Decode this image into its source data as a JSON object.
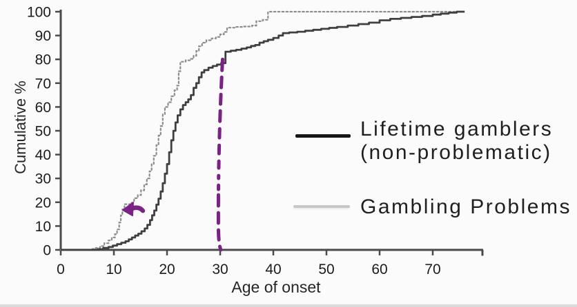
{
  "page": {
    "background": "#fbfbfb",
    "bottom_strip_color": "#dcdcdc"
  },
  "axis": {
    "color": "#4a4a4a",
    "tick_label_color": "#1c1c1c"
  },
  "chart_data": {
    "type": "line",
    "subtype": "cumulative-step",
    "title": "",
    "xlabel": "Age of onset",
    "ylabel": "Cumulative %",
    "xlim": [
      0,
      80
    ],
    "ylim": [
      0,
      100
    ],
    "x_ticks": [
      0,
      10,
      20,
      30,
      40,
      50,
      60,
      70
    ],
    "y_ticks": [
      0,
      10,
      20,
      30,
      40,
      50,
      60,
      70,
      80,
      90,
      100
    ],
    "grid": false,
    "legend_position": "right-middle",
    "series": [
      {
        "name": "Lifetime gamblers (non-problematic)",
        "line_style": "solid",
        "color": "#3f3f3f",
        "points": [
          [
            0,
            0
          ],
          [
            5.5,
            0
          ],
          [
            7,
            0.3
          ],
          [
            8,
            0.8
          ],
          [
            9,
            1.2
          ],
          [
            9.8,
            1.8
          ],
          [
            10.6,
            2.4
          ],
          [
            11.4,
            3
          ],
          [
            12.2,
            3.6
          ],
          [
            12.8,
            4.4
          ],
          [
            13.4,
            5.2
          ],
          [
            14,
            6
          ],
          [
            14.6,
            6.8
          ],
          [
            15.2,
            7.8
          ],
          [
            15.8,
            9
          ],
          [
            16.3,
            10.5
          ],
          [
            16.8,
            12.5
          ],
          [
            17.2,
            14.5
          ],
          [
            17.6,
            16.5
          ],
          [
            18,
            19
          ],
          [
            18.4,
            21.5
          ],
          [
            18.8,
            24.5
          ],
          [
            19.2,
            28
          ],
          [
            19.6,
            32
          ],
          [
            20,
            36
          ],
          [
            20.4,
            41
          ],
          [
            20.8,
            46
          ],
          [
            21.2,
            50
          ],
          [
            21.6,
            53.5
          ],
          [
            22,
            56.5
          ],
          [
            22.5,
            59
          ],
          [
            23,
            60.8
          ],
          [
            23.5,
            62
          ],
          [
            24,
            63.2
          ],
          [
            24.5,
            65
          ],
          [
            25,
            68
          ],
          [
            25.5,
            70
          ],
          [
            26,
            72.5
          ],
          [
            26.5,
            74.5
          ],
          [
            27,
            75.5
          ],
          [
            27.8,
            76.5
          ],
          [
            28.6,
            77.2
          ],
          [
            29.4,
            77.8
          ],
          [
            30.2,
            78.4
          ],
          [
            31,
            83.2
          ],
          [
            32,
            83.6
          ],
          [
            33,
            84
          ],
          [
            34,
            84.5
          ],
          [
            35,
            85
          ],
          [
            35.8,
            85.6
          ],
          [
            36.6,
            86
          ],
          [
            37.4,
            87
          ],
          [
            38.2,
            87.6
          ],
          [
            39,
            88.2
          ],
          [
            40,
            89
          ],
          [
            41,
            90
          ],
          [
            41.8,
            91
          ],
          [
            43,
            91.3
          ],
          [
            44.5,
            91.6
          ],
          [
            46,
            92
          ],
          [
            47.5,
            92.4
          ],
          [
            49,
            92.8
          ],
          [
            50.5,
            93.2
          ],
          [
            52,
            93.6
          ],
          [
            54,
            94.2
          ],
          [
            56,
            94.8
          ],
          [
            58,
            95.4
          ],
          [
            60,
            96.4
          ],
          [
            62,
            97
          ],
          [
            64,
            97.4
          ],
          [
            66,
            97.8
          ],
          [
            68,
            98.2
          ],
          [
            70,
            98.8
          ],
          [
            71.5,
            99.2
          ],
          [
            73,
            99.6
          ],
          [
            74.5,
            100
          ],
          [
            76,
            100
          ]
        ]
      },
      {
        "name": "Gambling Problems",
        "line_style": "dotted",
        "color": "#8c8c8c",
        "points": [
          [
            0,
            0
          ],
          [
            5,
            0
          ],
          [
            5.8,
            0.4
          ],
          [
            6.6,
            0.8
          ],
          [
            7.4,
            1.6
          ],
          [
            8.2,
            2.8
          ],
          [
            9,
            4
          ],
          [
            9.6,
            5.2
          ],
          [
            10.2,
            6.6
          ],
          [
            10.6,
            8.6
          ],
          [
            11,
            11.5
          ],
          [
            11.3,
            14.5
          ],
          [
            11.6,
            17
          ],
          [
            12,
            19.2
          ],
          [
            13.2,
            19.8
          ],
          [
            13.8,
            21.7
          ],
          [
            14.5,
            23
          ],
          [
            15.1,
            25
          ],
          [
            15.7,
            27.5
          ],
          [
            16.2,
            30
          ],
          [
            16.7,
            33
          ],
          [
            17.1,
            36
          ],
          [
            17.5,
            39.5
          ],
          [
            18,
            44
          ],
          [
            18.4,
            48
          ],
          [
            18.8,
            52
          ],
          [
            19.2,
            57
          ],
          [
            19.6,
            60
          ],
          [
            20.2,
            62
          ],
          [
            20.8,
            64.5
          ],
          [
            21.4,
            67
          ],
          [
            21.9,
            69
          ],
          [
            22.2,
            75
          ],
          [
            22.5,
            79
          ],
          [
            23.5,
            79.6
          ],
          [
            24.5,
            80.2
          ],
          [
            25,
            81.5
          ],
          [
            25.5,
            83.5
          ],
          [
            26,
            85.5
          ],
          [
            26.6,
            87
          ],
          [
            27.4,
            88
          ],
          [
            28.4,
            88.8
          ],
          [
            29.2,
            89.4
          ],
          [
            30,
            90.5
          ],
          [
            30.7,
            91.5
          ],
          [
            31.3,
            93.3
          ],
          [
            33,
            93.6
          ],
          [
            34.5,
            93.8
          ],
          [
            36,
            94.2
          ],
          [
            36.8,
            96
          ],
          [
            38,
            96.6
          ],
          [
            39,
            100
          ],
          [
            76,
            100
          ]
        ]
      }
    ],
    "annotations": [
      {
        "id": "age-30-reference-line",
        "type": "hand-drawn-dashed-line",
        "orientation": "vertical",
        "x_value": 30,
        "y_from_pct": 0,
        "y_to_pct": 80,
        "color": "#7b2384"
      },
      {
        "id": "early-onset-arrow",
        "type": "hand-drawn-arrow",
        "direction": "left",
        "x_value": 13.5,
        "y_value": 17,
        "color": "#7b2384"
      }
    ]
  },
  "legend": {
    "items": [
      {
        "line1": "Lifetime gamblers",
        "line2": "(non-problematic)",
        "swatch_color": "#161616",
        "swatch_style": "solid-thick"
      },
      {
        "line1": "Gambling Problems",
        "line2": "",
        "swatch_color": "#c7c7c7",
        "swatch_style": "solid-light"
      }
    ]
  }
}
